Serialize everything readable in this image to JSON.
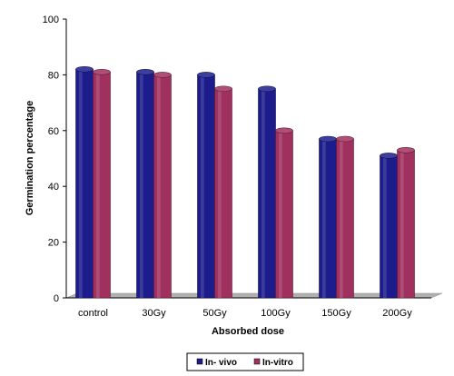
{
  "chart_data": {
    "type": "bar",
    "categories": [
      "control",
      "30Gy",
      "50Gy",
      "100Gy",
      "150Gy",
      "200Gy"
    ],
    "series": [
      {
        "name": "In- vivo",
        "values": [
          82,
          81,
          80,
          75,
          57,
          51
        ],
        "color": "#1c1c8c"
      },
      {
        "name": "In-vitro",
        "values": [
          81,
          80,
          75,
          60,
          57,
          53
        ],
        "color": "#a0305e"
      }
    ],
    "xlabel": "Absorbed dose",
    "ylabel": "Germination percentage",
    "ylim": [
      0,
      100
    ],
    "yticks": [
      "0",
      "20",
      "40",
      "60",
      "80",
      "100"
    ],
    "grid": false,
    "legend_position": "bottom",
    "floor_color": "#b0b0b0"
  }
}
